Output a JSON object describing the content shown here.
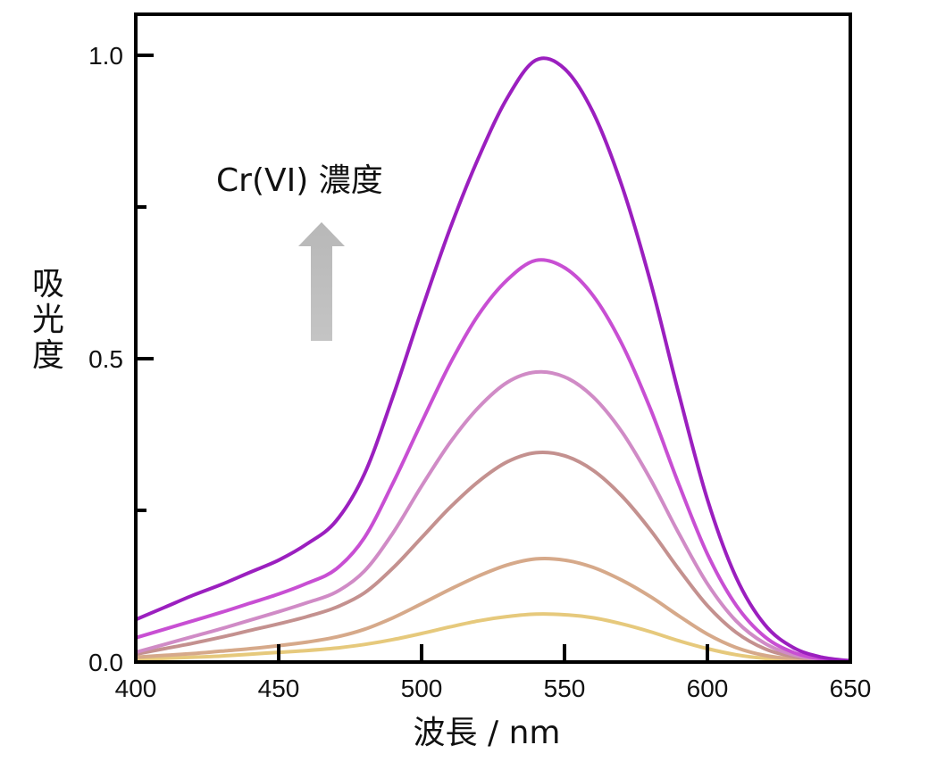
{
  "chart_data": {
    "type": "line",
    "xlabel": "波長 / nm",
    "ylabel": "吸光度",
    "xlim": [
      400,
      650
    ],
    "ylim": [
      0,
      1.1
    ],
    "x_ticks": [
      400,
      450,
      500,
      550,
      600,
      650
    ],
    "x_tick_labels": [
      "400",
      "450",
      "500",
      "550",
      "600",
      "650"
    ],
    "y_major_ticks": [
      0.0,
      0.5,
      1.0
    ],
    "y_tick_labels": [
      "0.0",
      "0.5",
      "1.0"
    ],
    "y_minor_ticks": [
      0.25,
      0.75
    ],
    "grid": false,
    "annotation": {
      "text": "Cr(VI) 濃度",
      "arrow": "up",
      "arrow_color": "#c0c0c0"
    },
    "x": [
      400,
      410,
      420,
      430,
      440,
      450,
      460,
      470,
      480,
      490,
      500,
      510,
      520,
      530,
      540,
      550,
      560,
      570,
      580,
      590,
      600,
      610,
      620,
      630,
      640,
      650
    ],
    "series": [
      {
        "color": "#e6c97c",
        "values": [
          0.004,
          0.006,
          0.008,
          0.01,
          0.013,
          0.016,
          0.019,
          0.023,
          0.029,
          0.037,
          0.047,
          0.058,
          0.068,
          0.075,
          0.079,
          0.078,
          0.073,
          0.063,
          0.05,
          0.035,
          0.022,
          0.012,
          0.006,
          0.003,
          0.001,
          0.0
        ]
      },
      {
        "color": "#d6a98a",
        "values": [
          0.008,
          0.011,
          0.014,
          0.018,
          0.022,
          0.027,
          0.033,
          0.041,
          0.054,
          0.073,
          0.096,
          0.12,
          0.142,
          0.16,
          0.17,
          0.168,
          0.156,
          0.135,
          0.108,
          0.076,
          0.046,
          0.024,
          0.011,
          0.005,
          0.002,
          0.0
        ]
      },
      {
        "color": "#c4918f",
        "values": [
          0.013,
          0.022,
          0.031,
          0.041,
          0.052,
          0.063,
          0.075,
          0.09,
          0.114,
          0.155,
          0.205,
          0.255,
          0.298,
          0.33,
          0.345,
          0.34,
          0.316,
          0.274,
          0.218,
          0.153,
          0.093,
          0.049,
          0.022,
          0.009,
          0.003,
          0.0
        ]
      },
      {
        "color": "#d08bc6",
        "values": [
          0.016,
          0.029,
          0.042,
          0.055,
          0.069,
          0.083,
          0.098,
          0.115,
          0.15,
          0.213,
          0.29,
          0.362,
          0.42,
          0.461,
          0.478,
          0.47,
          0.437,
          0.38,
          0.302,
          0.212,
          0.129,
          0.068,
          0.031,
          0.012,
          0.004,
          0.001
        ]
      },
      {
        "color": "#c84fd3",
        "values": [
          0.04,
          0.054,
          0.068,
          0.082,
          0.097,
          0.112,
          0.13,
          0.153,
          0.205,
          0.295,
          0.395,
          0.492,
          0.573,
          0.63,
          0.662,
          0.65,
          0.604,
          0.525,
          0.418,
          0.293,
          0.178,
          0.094,
          0.042,
          0.016,
          0.005,
          0.001
        ]
      },
      {
        "color": "#9b1fbf",
        "values": [
          0.07,
          0.09,
          0.11,
          0.128,
          0.148,
          0.168,
          0.195,
          0.232,
          0.31,
          0.438,
          0.58,
          0.715,
          0.832,
          0.93,
          0.992,
          0.978,
          0.906,
          0.786,
          0.628,
          0.442,
          0.268,
          0.14,
          0.062,
          0.024,
          0.008,
          0.002
        ]
      }
    ]
  }
}
